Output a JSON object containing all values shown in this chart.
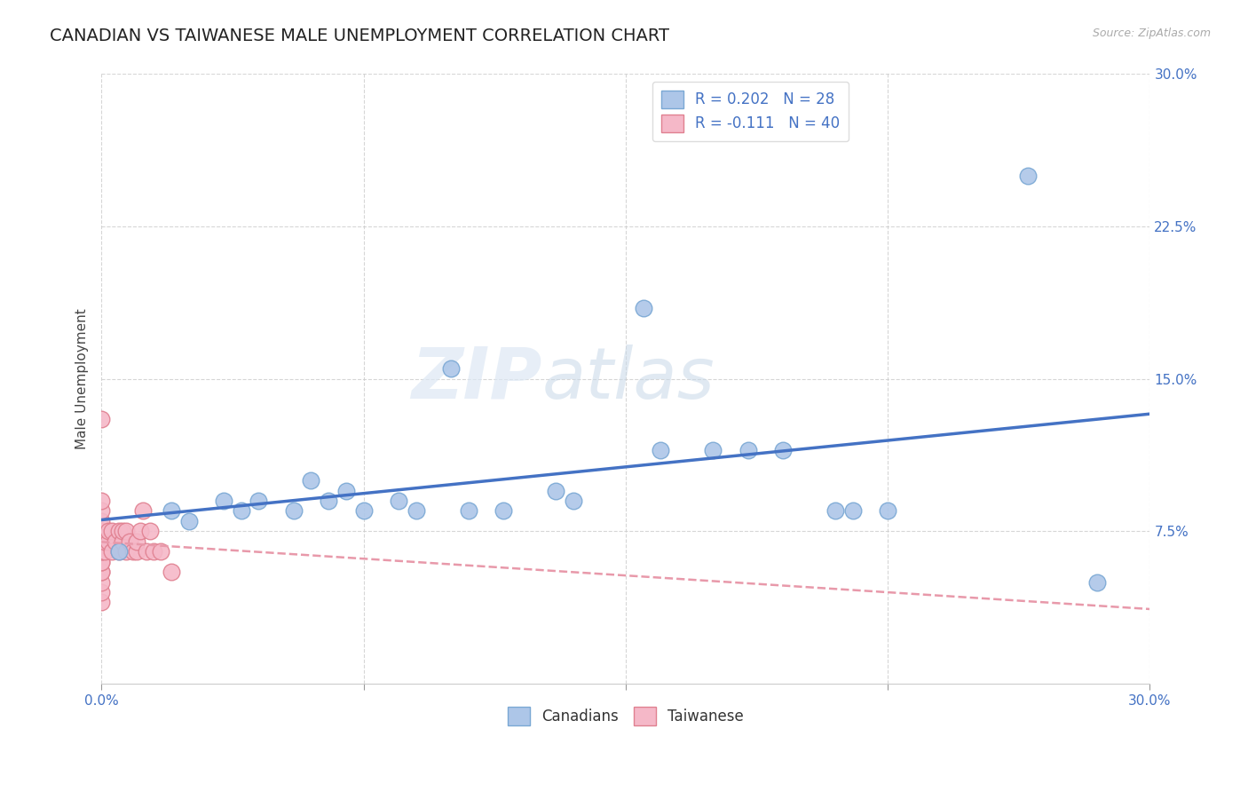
{
  "title": "CANADIAN VS TAIWANESE MALE UNEMPLOYMENT CORRELATION CHART",
  "source_text": "Source: ZipAtlas.com",
  "ylabel": "Male Unemployment",
  "watermark_zip": "ZIP",
  "watermark_atlas": "atlas",
  "xlim": [
    0.0,
    0.3
  ],
  "ylim": [
    0.0,
    0.3
  ],
  "xticks": [
    0.0,
    0.075,
    0.15,
    0.225,
    0.3
  ],
  "yticks": [
    0.075,
    0.15,
    0.225,
    0.3
  ],
  "grid_color": "#cccccc",
  "background_color": "#ffffff",
  "canadians_color": "#adc6e8",
  "taiwanese_color": "#f5b8c8",
  "canadians_edge": "#7aa8d4",
  "taiwanese_edge": "#e08090",
  "trend_canadian_color": "#4472c4",
  "trend_taiwanese_color": "#e899aa",
  "legend_R_canadian": "R = 0.202",
  "legend_N_canadian": "N = 28",
  "legend_R_taiwanese": "R = -0.111",
  "legend_N_taiwanese": "N = 40",
  "canadians_x": [
    0.005,
    0.02,
    0.025,
    0.035,
    0.04,
    0.045,
    0.055,
    0.06,
    0.065,
    0.07,
    0.075,
    0.085,
    0.09,
    0.1,
    0.105,
    0.115,
    0.13,
    0.135,
    0.155,
    0.16,
    0.175,
    0.185,
    0.195,
    0.21,
    0.215,
    0.225,
    0.265,
    0.285
  ],
  "canadians_y": [
    0.065,
    0.085,
    0.08,
    0.09,
    0.085,
    0.09,
    0.085,
    0.1,
    0.09,
    0.095,
    0.085,
    0.09,
    0.085,
    0.155,
    0.085,
    0.085,
    0.095,
    0.09,
    0.185,
    0.115,
    0.115,
    0.115,
    0.115,
    0.085,
    0.085,
    0.085,
    0.25,
    0.05
  ],
  "taiwanese_x": [
    0.0,
    0.0,
    0.0,
    0.0,
    0.0,
    0.0,
    0.0,
    0.0,
    0.0,
    0.0,
    0.0,
    0.0,
    0.0,
    0.0,
    0.0,
    0.0,
    0.001,
    0.001,
    0.002,
    0.002,
    0.003,
    0.003,
    0.004,
    0.005,
    0.005,
    0.006,
    0.006,
    0.007,
    0.007,
    0.008,
    0.009,
    0.01,
    0.01,
    0.011,
    0.012,
    0.013,
    0.014,
    0.015,
    0.017,
    0.02
  ],
  "taiwanese_y": [
    0.04,
    0.045,
    0.05,
    0.055,
    0.055,
    0.06,
    0.06,
    0.065,
    0.065,
    0.07,
    0.075,
    0.075,
    0.08,
    0.085,
    0.09,
    0.13,
    0.065,
    0.07,
    0.07,
    0.075,
    0.065,
    0.075,
    0.07,
    0.065,
    0.075,
    0.07,
    0.075,
    0.065,
    0.075,
    0.07,
    0.065,
    0.065,
    0.07,
    0.075,
    0.085,
    0.065,
    0.075,
    0.065,
    0.065,
    0.055
  ],
  "title_fontsize": 14,
  "label_fontsize": 11,
  "tick_fontsize": 11,
  "legend_fontsize": 12,
  "source_fontsize": 9
}
